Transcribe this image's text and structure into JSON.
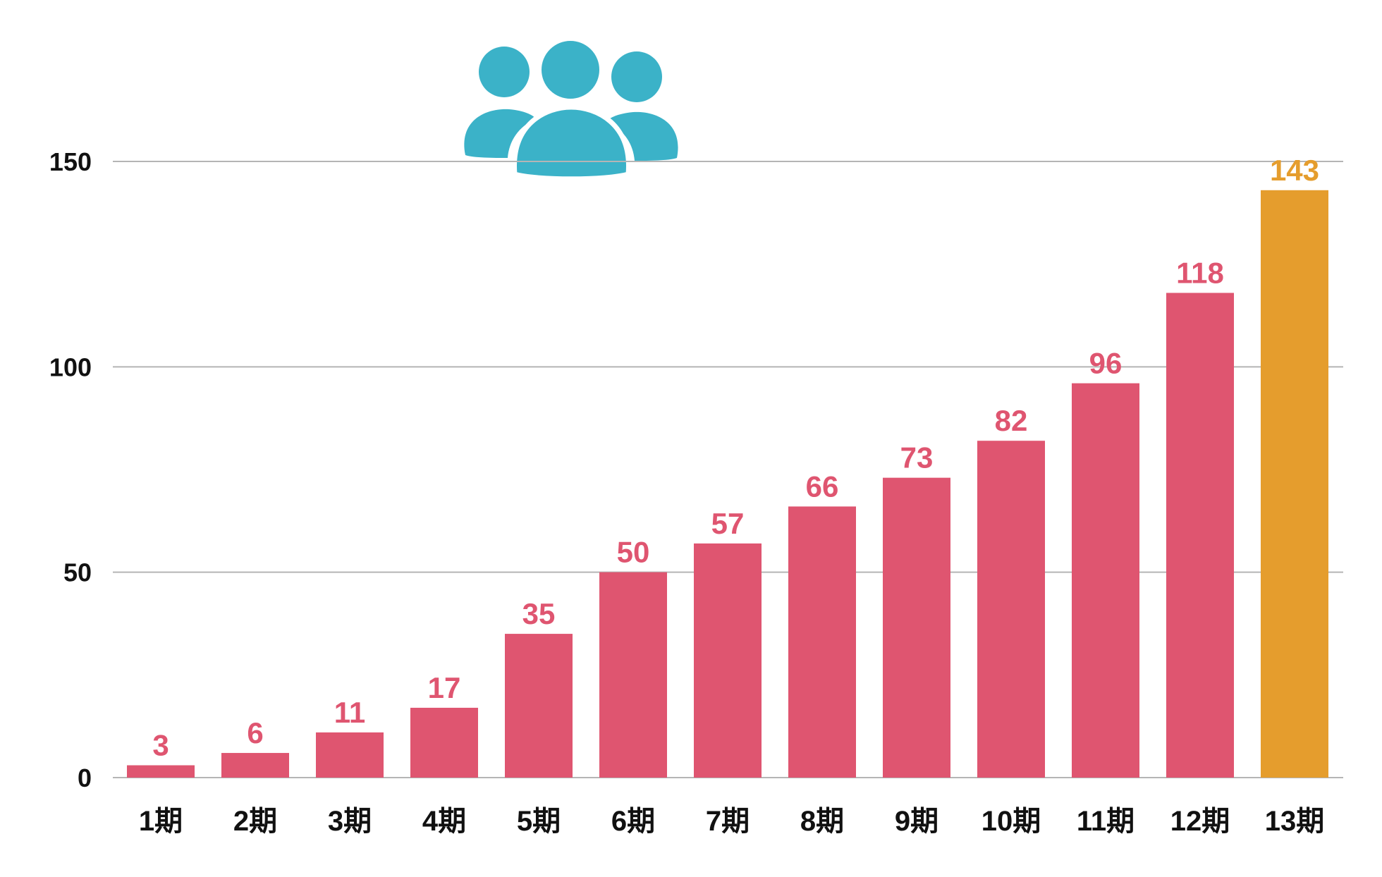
{
  "chart_data": {
    "type": "bar",
    "categories": [
      "1期",
      "2期",
      "3期",
      "4期",
      "5期",
      "6期",
      "7期",
      "8期",
      "9期",
      "10期",
      "11期",
      "12期",
      "13期"
    ],
    "values": [
      3,
      6,
      11,
      17,
      35,
      50,
      57,
      66,
      73,
      82,
      96,
      118,
      143
    ],
    "ylim": [
      0,
      150
    ],
    "yticks": [
      0,
      50,
      100,
      150
    ],
    "grid": true,
    "highlight_index": 12,
    "icon": "people-group-icon"
  },
  "colors": {
    "bar": "#df5570",
    "highlight": "#e59d2d",
    "icon": "#3bb2c8"
  }
}
